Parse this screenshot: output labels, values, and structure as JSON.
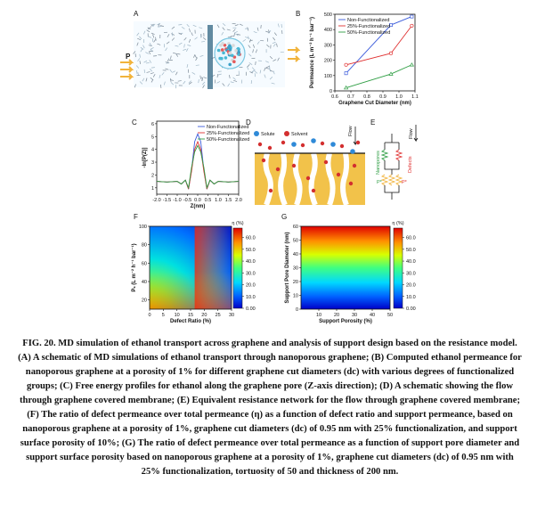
{
  "panels": {
    "A": {
      "letter": "A",
      "arrow_label": "P"
    },
    "B": {
      "letter": "B"
    },
    "C": {
      "letter": "C"
    },
    "D": {
      "letter": "D",
      "legend": {
        "solute": "Solute",
        "solvent": "Solvent"
      },
      "flow": "Flow"
    },
    "E": {
      "letter": "E",
      "flow": "Flow",
      "nanopores": "Nanopores",
      "defects": "Defects",
      "p_left": "P*",
      "p_right": "P*"
    },
    "F": {
      "letter": "F"
    },
    "G": {
      "letter": "G"
    }
  },
  "chart_data": [
    {
      "id": "B",
      "type": "line",
      "xlabel": "Graphene Cut Diameter (nm)",
      "ylabel": "Permeance (L m⁻² h⁻¹ bar⁻¹)",
      "xlim": [
        0.6,
        1.1
      ],
      "ylim": [
        0,
        500
      ],
      "xticks": [
        "0.6",
        "0.7",
        "0.8",
        "0.9",
        "1.0",
        "1.1"
      ],
      "yticks": [
        "0",
        "100",
        "200",
        "300",
        "400",
        "500"
      ],
      "legend": "top-left",
      "series": [
        {
          "name": "Non-Functionalized",
          "color": "#3b5bdb",
          "marker": "square",
          "x": [
            0.67,
            0.95,
            1.08
          ],
          "y": [
            115,
            430,
            485
          ]
        },
        {
          "name": "25%-Functionalized",
          "color": "#e03131",
          "marker": "circle",
          "x": [
            0.67,
            0.95,
            1.08
          ],
          "y": [
            170,
            245,
            425
          ]
        },
        {
          "name": "50%-Functionalized",
          "color": "#2f9e44",
          "marker": "triangle",
          "x": [
            0.67,
            0.95,
            1.08
          ],
          "y": [
            20,
            110,
            170
          ]
        }
      ]
    },
    {
      "id": "C",
      "type": "line",
      "xlabel": "Z(nm)",
      "ylabel": "-ln[P(Z)]",
      "xlim": [
        -2.0,
        2.0
      ],
      "ylim": [
        0,
        6
      ],
      "xticks": [
        "-2.0",
        "-1.5",
        "-1.0",
        "-0.5",
        "0.0",
        "0.5",
        "1.0",
        "1.5",
        "2.0"
      ],
      "yticks": [
        "1",
        "2",
        "3",
        "4",
        "5",
        "6"
      ],
      "legend": "top-right",
      "series": [
        {
          "name": "Non-Functionalized",
          "color": "#3b5bdb",
          "x": [
            -2.0,
            -1.5,
            -1.0,
            -0.8,
            -0.6,
            -0.45,
            -0.3,
            -0.15,
            0,
            0.15,
            0.3,
            0.45,
            0.6,
            0.8,
            1.0,
            1.5,
            2.0
          ],
          "y": [
            1.5,
            1.45,
            1.5,
            1.3,
            1.6,
            0.9,
            2.4,
            4.6,
            5.2,
            4.6,
            2.4,
            0.9,
            1.6,
            1.3,
            1.5,
            1.45,
            1.5
          ]
        },
        {
          "name": "25%-Functionalized",
          "color": "#e03131",
          "x": [
            -2.0,
            -1.5,
            -1.0,
            -0.8,
            -0.6,
            -0.45,
            -0.3,
            -0.15,
            0,
            0.15,
            0.3,
            0.45,
            0.6,
            0.8,
            1.0,
            1.5,
            2.0
          ],
          "y": [
            1.5,
            1.45,
            1.5,
            1.3,
            1.6,
            0.9,
            2.3,
            4.0,
            4.6,
            4.0,
            2.3,
            0.9,
            1.6,
            1.3,
            1.5,
            1.45,
            1.5
          ]
        },
        {
          "name": "50%-Functionalized",
          "color": "#2f9e44",
          "x": [
            -2.0,
            -1.5,
            -1.0,
            -0.8,
            -0.6,
            -0.45,
            -0.3,
            -0.15,
            0,
            0.15,
            0.3,
            0.45,
            0.6,
            0.8,
            1.0,
            1.5,
            2.0
          ],
          "y": [
            1.5,
            1.45,
            1.5,
            1.3,
            1.6,
            1.0,
            2.6,
            3.8,
            4.3,
            3.8,
            2.6,
            1.0,
            1.6,
            1.3,
            1.5,
            1.45,
            1.5
          ]
        }
      ]
    },
    {
      "id": "F",
      "type": "heatmap",
      "xlabel": "Defect Ratio (%)",
      "ylabel": "Pₛ (L m⁻² h⁻¹ bar⁻¹)",
      "xlim": [
        0,
        30
      ],
      "ylim": [
        10,
        100
      ],
      "xticks": [
        "0",
        "5",
        "10",
        "15",
        "20",
        "25",
        "30"
      ],
      "yticks": [
        "20",
        "40",
        "60",
        "80",
        "100"
      ],
      "colorbar": {
        "title": "η (%)",
        "ticks": [
          "0.00",
          "10.0",
          "20.0",
          "30.0",
          "40.0",
          "50.0",
          "60.0"
        ],
        "min": 0,
        "max": 68
      }
    },
    {
      "id": "G",
      "type": "heatmap",
      "xlabel": "Support Porosity (%)",
      "ylabel": "Support Pore Diameter (nm)",
      "xlim": [
        0,
        50
      ],
      "ylim": [
        0,
        60
      ],
      "xticks": [
        "10",
        "20",
        "30",
        "40",
        "50"
      ],
      "yticks": [
        "0",
        "10",
        "20",
        "30",
        "40",
        "50",
        "60"
      ],
      "colorbar": {
        "title": "η (%)",
        "ticks": [
          "0.00",
          "10.0",
          "20.0",
          "30.0",
          "40.0",
          "50.0",
          "60.0"
        ],
        "min": 0,
        "max": 68
      }
    }
  ],
  "caption": "FIG. 20. MD simulation of ethanol transport across graphene and analysis of support design based on the resistance model. (A) A schematic of MD simulations of ethanol transport through nanoporous graphene; (B) Computed ethanol permeance for nanoporous graphene at a porosity of 1% for different graphene cut diameters (dc) with various degrees of functionalized groups; (C) Free energy profiles for ethanol along the graphene pore (Z-axis direction); (D) A schematic showing the flow through graphene covered membrane; (E) Equivalent resistance network for the flow through graphene covered membrane; (F) The ratio of defect permeance over total permeance (η) as a function of defect ratio and support permeance, based on nanoporous graphene at a porosity of 1%, graphene cut diameters (dc) of 0.95 nm with 25% functionalization, and support surface porosity of 10%; (G) The ratio of defect permeance over total permeance as a function of support pore diameter and support surface porosity based on nanoporous graphene at a porosity of 1%, graphene cut diameters (dc) of 0.95 nm with 25% functionalization, tortuosity of 50 and thickness of 200 nm."
}
